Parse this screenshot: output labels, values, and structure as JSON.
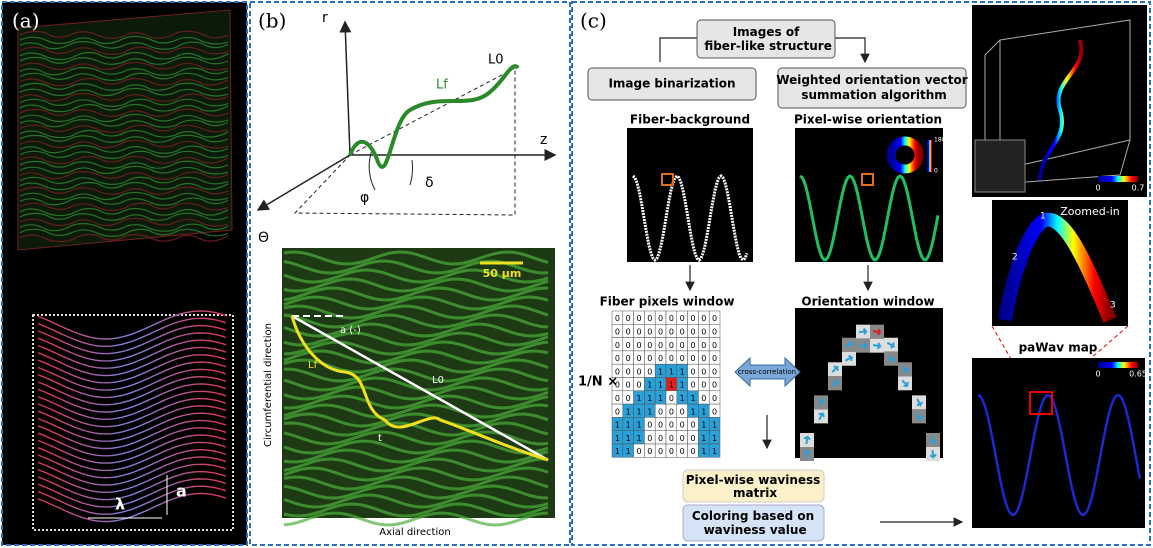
{
  "panel_a": {
    "label": "(a)",
    "wavelength": "λ",
    "amplitude": "a"
  },
  "panel_b": {
    "label": "(b)",
    "axis_r": "r",
    "axis_z": "z",
    "L0": "L0",
    "Lf": "Lf",
    "phi": "φ",
    "delta": "δ",
    "theta": "Θ",
    "image": {
      "scale_bar": "50 μm",
      "angle": "a (-)",
      "Lf": "Lf",
      "L0": "L0",
      "thickness": "t"
    },
    "y_label": "Circumferential direction",
    "x_label": "Axial direction"
  },
  "panel_c": {
    "label": "(c)",
    "top_box": "Images of fiber-like structure",
    "left_box": "Image binarization",
    "right_box": "Weighted orientation vector summation algorithm",
    "left_image_title": "Fiber-background",
    "right_image_title": "Pixel-wise orientation",
    "wheel_max": "180",
    "wheel_min": "0",
    "left_window_title": "Fiber pixels window",
    "right_window_title": "Orientation window",
    "normalizer": "1/N ×",
    "cross": "cross-correlation",
    "matrix": [
      [
        0,
        0,
        0,
        0,
        0,
        0,
        0,
        0,
        0,
        0
      ],
      [
        0,
        0,
        0,
        0,
        0,
        0,
        0,
        0,
        0,
        0
      ],
      [
        0,
        0,
        0,
        0,
        0,
        0,
        0,
        0,
        0,
        0
      ],
      [
        0,
        0,
        0,
        0,
        0,
        0,
        0,
        0,
        0,
        0
      ],
      [
        0,
        0,
        0,
        0,
        1,
        1,
        1,
        0,
        0,
        0
      ],
      [
        0,
        0,
        0,
        1,
        1,
        1,
        1,
        0,
        0,
        0
      ],
      [
        0,
        0,
        1,
        1,
        1,
        0,
        1,
        1,
        0,
        0
      ],
      [
        0,
        1,
        1,
        1,
        0,
        0,
        0,
        1,
        1,
        0
      ],
      [
        1,
        1,
        1,
        0,
        0,
        0,
        0,
        0,
        1,
        1
      ],
      [
        1,
        1,
        1,
        0,
        0,
        0,
        0,
        0,
        1,
        1
      ],
      [
        1,
        1,
        0,
        0,
        0,
        0,
        0,
        0,
        1,
        1
      ]
    ],
    "waviness_box": "Pixel-wise waviness matrix",
    "coloring_box": "Coloring based on waviness value",
    "cbar1_min": "0",
    "cbar1_max": "0.7",
    "zoom_title": "Zoomed-in",
    "p1": "1",
    "p2": "2",
    "p3": "3",
    "map_title": "paWav map",
    "cbar2_min": "0",
    "cbar2_max": "0.65"
  }
}
